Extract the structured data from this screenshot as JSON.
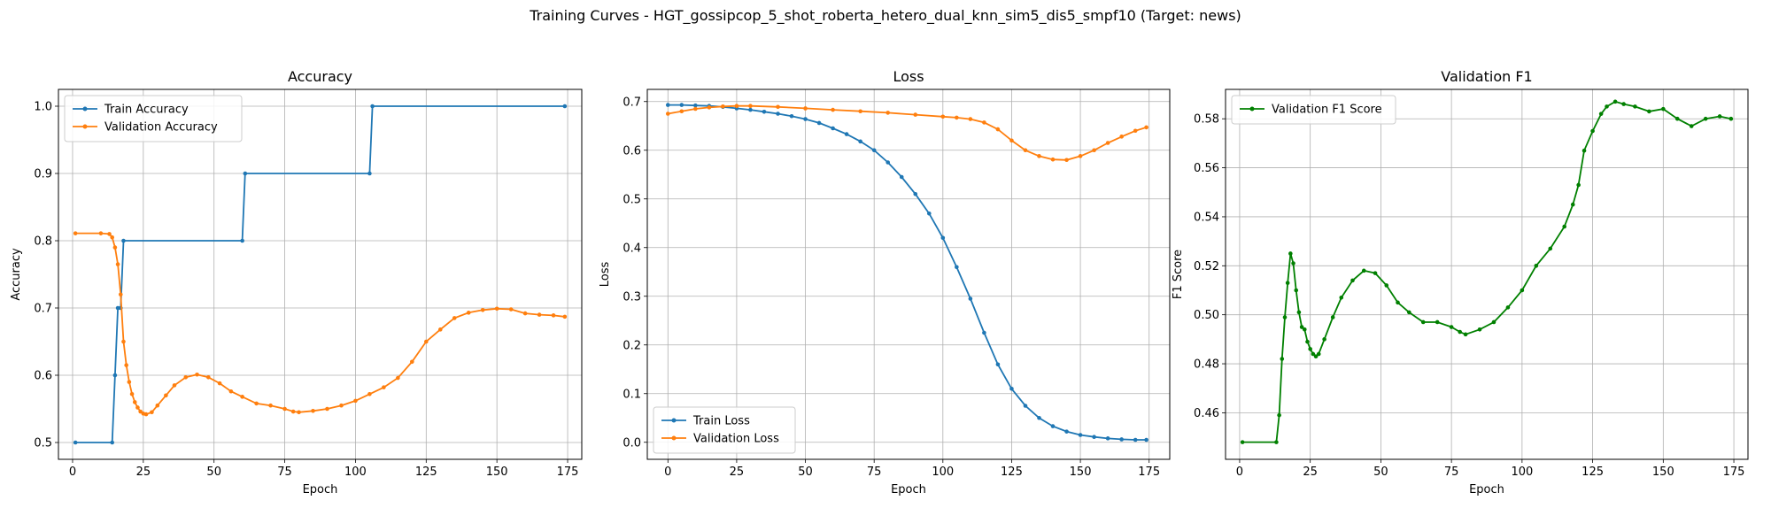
{
  "suptitle": "Training Curves - HGT_gossipcop_5_shot_roberta_hetero_dual_knn_sim5_dis5_smpf10 (Target: news)",
  "colors": {
    "blue": "#1f77b4",
    "orange": "#ff7f0e",
    "green": "#008000",
    "grid": "#b0b0b0"
  },
  "chart_data": [
    {
      "type": "line",
      "title": "Accuracy",
      "xlabel": "Epoch",
      "ylabel": "Accuracy",
      "xlim": [
        -5,
        180
      ],
      "ylim": [
        0.475,
        1.025
      ],
      "xticks": [
        0,
        25,
        50,
        75,
        100,
        125,
        150,
        175
      ],
      "yticks": [
        0.5,
        0.6,
        0.7,
        0.8,
        0.9,
        1.0
      ],
      "ytick_labels": [
        "0.5",
        "0.6",
        "0.7",
        "0.8",
        "0.9",
        "1.0"
      ],
      "grid": true,
      "legend": "upper left",
      "series": [
        {
          "name": "Train Accuracy",
          "color": "#1f77b4",
          "x": [
            1,
            14,
            15,
            16,
            17,
            18,
            60,
            61,
            105,
            106,
            174
          ],
          "y": [
            0.5,
            0.5,
            0.6,
            0.7,
            0.7,
            0.8,
            0.8,
            0.9,
            0.9,
            1.0,
            1.0
          ]
        },
        {
          "name": "Validation Accuracy",
          "color": "#ff7f0e",
          "x": [
            1,
            10,
            13,
            14,
            15,
            16,
            17,
            18,
            19,
            20,
            21,
            22,
            23,
            24,
            25,
            26,
            28,
            30,
            33,
            36,
            40,
            44,
            48,
            52,
            56,
            60,
            65,
            70,
            75,
            78,
            80,
            85,
            90,
            95,
            100,
            105,
            110,
            115,
            120,
            125,
            130,
            135,
            140,
            145,
            150,
            155,
            160,
            165,
            170,
            174
          ],
          "y": [
            0.811,
            0.811,
            0.81,
            0.805,
            0.79,
            0.765,
            0.72,
            0.65,
            0.615,
            0.59,
            0.572,
            0.56,
            0.552,
            0.546,
            0.543,
            0.542,
            0.545,
            0.555,
            0.57,
            0.585,
            0.597,
            0.601,
            0.597,
            0.588,
            0.576,
            0.568,
            0.558,
            0.555,
            0.55,
            0.546,
            0.545,
            0.547,
            0.55,
            0.555,
            0.562,
            0.572,
            0.582,
            0.596,
            0.62,
            0.65,
            0.668,
            0.685,
            0.693,
            0.697,
            0.699,
            0.698,
            0.692,
            0.69,
            0.689,
            0.687
          ]
        }
      ]
    },
    {
      "type": "line",
      "title": "Loss",
      "xlabel": "Epoch",
      "ylabel": "Loss",
      "xlim": [
        -7.5,
        182.5
      ],
      "ylim": [
        -0.035,
        0.725
      ],
      "xticks": [
        0,
        25,
        50,
        75,
        100,
        125,
        150,
        175
      ],
      "yticks": [
        0.0,
        0.1,
        0.2,
        0.3,
        0.4,
        0.5,
        0.6,
        0.7
      ],
      "ytick_labels": [
        "0.0",
        "0.1",
        "0.2",
        "0.3",
        "0.4",
        "0.5",
        "0.6",
        "0.7"
      ],
      "grid": true,
      "legend": "lower left",
      "series": [
        {
          "name": "Train Loss",
          "color": "#1f77b4",
          "x": [
            0,
            5,
            10,
            15,
            20,
            25,
            30,
            35,
            40,
            45,
            50,
            55,
            60,
            65,
            70,
            75,
            80,
            85,
            90,
            95,
            100,
            105,
            110,
            115,
            120,
            125,
            130,
            135,
            140,
            145,
            150,
            155,
            160,
            165,
            170,
            174
          ],
          "y": [
            0.693,
            0.693,
            0.692,
            0.691,
            0.689,
            0.686,
            0.683,
            0.679,
            0.675,
            0.67,
            0.664,
            0.656,
            0.645,
            0.633,
            0.618,
            0.6,
            0.575,
            0.545,
            0.51,
            0.47,
            0.42,
            0.36,
            0.295,
            0.225,
            0.16,
            0.11,
            0.075,
            0.05,
            0.033,
            0.022,
            0.015,
            0.011,
            0.008,
            0.006,
            0.005,
            0.005
          ]
        },
        {
          "name": "Validation Loss",
          "color": "#ff7f0e",
          "x": [
            0,
            5,
            10,
            15,
            20,
            25,
            30,
            40,
            50,
            60,
            70,
            80,
            90,
            100,
            105,
            110,
            115,
            120,
            125,
            130,
            135,
            140,
            145,
            150,
            155,
            160,
            165,
            170,
            174
          ],
          "y": [
            0.675,
            0.68,
            0.685,
            0.688,
            0.69,
            0.691,
            0.691,
            0.689,
            0.686,
            0.683,
            0.68,
            0.677,
            0.673,
            0.669,
            0.667,
            0.664,
            0.657,
            0.643,
            0.62,
            0.6,
            0.588,
            0.581,
            0.58,
            0.588,
            0.6,
            0.615,
            0.628,
            0.64,
            0.647
          ]
        }
      ]
    },
    {
      "type": "line",
      "title": "Validation F1",
      "xlabel": "Epoch",
      "ylabel": "F1 Score",
      "xlim": [
        -5,
        180
      ],
      "ylim": [
        0.441,
        0.592
      ],
      "xticks": [
        0,
        25,
        50,
        75,
        100,
        125,
        150,
        175
      ],
      "yticks": [
        0.46,
        0.48,
        0.5,
        0.52,
        0.54,
        0.56,
        0.58
      ],
      "ytick_labels": [
        "0.46",
        "0.48",
        "0.50",
        "0.52",
        "0.54",
        "0.56",
        "0.58"
      ],
      "grid": true,
      "legend": "upper left",
      "series": [
        {
          "name": "Validation F1 Score",
          "color": "#008000",
          "x": [
            1,
            13,
            14,
            15,
            16,
            17,
            18,
            19,
            20,
            21,
            22,
            23,
            24,
            25,
            26,
            27,
            28,
            30,
            33,
            36,
            40,
            44,
            48,
            52,
            56,
            60,
            65,
            70,
            75,
            78,
            80,
            85,
            90,
            95,
            100,
            105,
            110,
            115,
            118,
            120,
            122,
            125,
            128,
            130,
            133,
            136,
            140,
            145,
            150,
            155,
            160,
            165,
            170,
            174
          ],
          "y": [
            0.448,
            0.448,
            0.459,
            0.482,
            0.499,
            0.513,
            0.525,
            0.521,
            0.51,
            0.501,
            0.495,
            0.494,
            0.489,
            0.486,
            0.484,
            0.483,
            0.484,
            0.49,
            0.499,
            0.507,
            0.514,
            0.518,
            0.517,
            0.512,
            0.505,
            0.501,
            0.497,
            0.497,
            0.495,
            0.493,
            0.492,
            0.494,
            0.497,
            0.503,
            0.51,
            0.52,
            0.527,
            0.536,
            0.545,
            0.553,
            0.567,
            0.575,
            0.582,
            0.585,
            0.587,
            0.586,
            0.585,
            0.583,
            0.584,
            0.58,
            0.577,
            0.58,
            0.581,
            0.58
          ]
        }
      ]
    }
  ]
}
